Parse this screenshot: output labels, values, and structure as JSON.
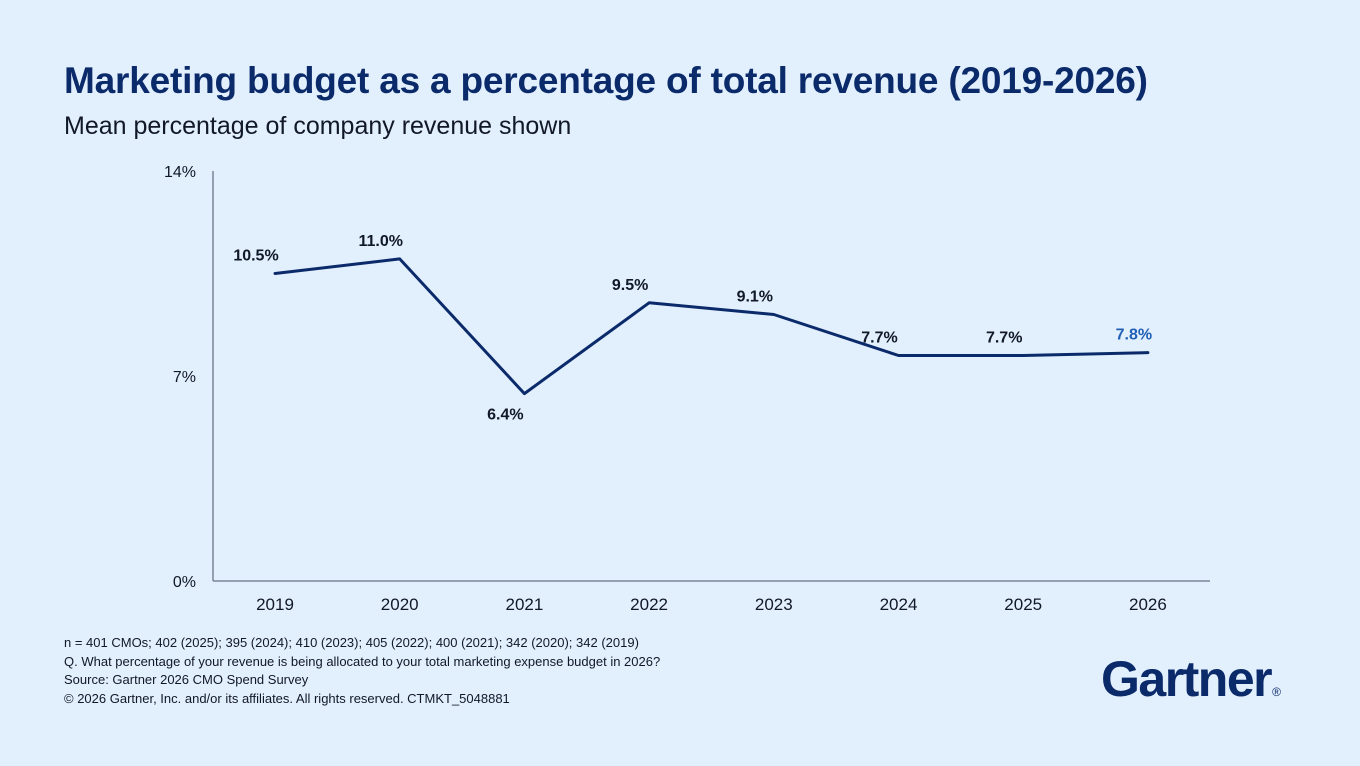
{
  "header": {
    "title": "Marketing budget as a percentage of total revenue (2019-2026)",
    "subtitle": "Mean percentage of company revenue shown"
  },
  "chart_data": {
    "type": "line",
    "title": "Marketing budget as a percentage of total revenue (2019-2026)",
    "subtitle": "Mean percentage of company revenue shown",
    "xlabel": "",
    "ylabel": "",
    "categories": [
      "2019",
      "2020",
      "2021",
      "2022",
      "2023",
      "2024",
      "2025",
      "2026"
    ],
    "series": [
      {
        "values": [
          10.5,
          11.0,
          6.4,
          9.5,
          9.1,
          7.7,
          7.7,
          7.8
        ],
        "labels": [
          "10.5%",
          "11.0%",
          "6.4%",
          "9.5%",
          "9.1%",
          "7.7%",
          "7.7%",
          "7.8%"
        ]
      }
    ],
    "ylim": [
      0,
      14
    ],
    "yticks": [
      0,
      7,
      14
    ],
    "ytick_labels": [
      "0%",
      "7%",
      "14%"
    ],
    "grid": false,
    "legend": "none",
    "colors": {
      "line": "#0b2a6a",
      "label": "#111827",
      "highlight_label": "#1f5fb4",
      "axis": "#7a869a"
    },
    "highlight_index": 7
  },
  "footer": {
    "notes": [
      "n = 401 CMOs; 402 (2025); 395 (2024); 410 (2023); 405 (2022); 400 (2021); 342 (2020); 342 (2019)",
      "Q. What percentage of your revenue is being allocated to your total marketing expense budget in 2026?",
      "Source: Gartner 2026 CMO Spend Survey",
      "© 2026 Gartner, Inc. and/or its affiliates. All rights reserved. CTMKT_5048881"
    ]
  },
  "brand": {
    "logo_text": "Gartner",
    "logo_mark": "®"
  }
}
